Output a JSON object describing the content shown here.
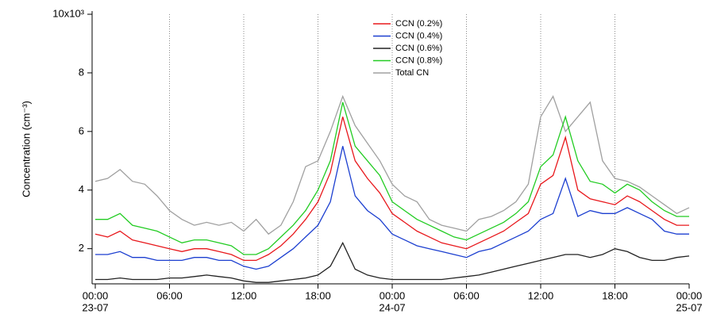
{
  "chart_data": {
    "type": "line",
    "y_label": "Concentration (cm⁻³)",
    "x": [
      0,
      1,
      2,
      3,
      4,
      5,
      6,
      7,
      8,
      9,
      10,
      11,
      12,
      13,
      14,
      15,
      16,
      17,
      18,
      19,
      20,
      21,
      22,
      23,
      24,
      25,
      26,
      27,
      28,
      29,
      30,
      31,
      32,
      33,
      34,
      35,
      36,
      37,
      38,
      39,
      40,
      41,
      42,
      43,
      44,
      45,
      46,
      47,
      48
    ],
    "xlim": [
      0,
      48
    ],
    "xticks": [
      {
        "value": 0,
        "label": "00:00"
      },
      {
        "value": 6,
        "label": "06:00"
      },
      {
        "value": 12,
        "label": "12:00"
      },
      {
        "value": 18,
        "label": "18:00"
      },
      {
        "value": 24,
        "label": "00:00"
      },
      {
        "value": 30,
        "label": "06:00"
      },
      {
        "value": 36,
        "label": "12:00"
      },
      {
        "value": 42,
        "label": "18:00"
      },
      {
        "value": 48,
        "label": "00:00"
      }
    ],
    "xtick_dates": [
      {
        "value": 0,
        "label": "23-07"
      },
      {
        "value": 24,
        "label": "24-07"
      },
      {
        "value": 48,
        "label": "25-07"
      }
    ],
    "ylim": [
      0.8,
      10
    ],
    "yticks": [
      2,
      4,
      6,
      8,
      {
        "value": 10,
        "label": "10x10³"
      }
    ],
    "grid": "x-dotted",
    "legend": "upper center",
    "series": [
      {
        "name": "CCN (0.2%)",
        "color": "#e8181c",
        "values": [
          2.5,
          2.4,
          2.6,
          2.3,
          2.2,
          2.1,
          2.0,
          1.9,
          2.0,
          2.0,
          1.9,
          1.8,
          1.6,
          1.6,
          1.8,
          2.1,
          2.5,
          3.0,
          3.6,
          4.6,
          6.5,
          5.0,
          4.4,
          3.9,
          3.2,
          2.9,
          2.6,
          2.4,
          2.2,
          2.1,
          2.0,
          2.2,
          2.4,
          2.6,
          2.9,
          3.2,
          4.2,
          4.5,
          5.8,
          4.0,
          3.7,
          3.6,
          3.5,
          3.8,
          3.6,
          3.3,
          3.0,
          2.8,
          2.8
        ]
      },
      {
        "name": "CCN (0.4%)",
        "color": "#1c3fd0",
        "values": [
          1.8,
          1.8,
          1.9,
          1.7,
          1.7,
          1.6,
          1.6,
          1.6,
          1.7,
          1.7,
          1.6,
          1.6,
          1.4,
          1.3,
          1.4,
          1.7,
          2.0,
          2.4,
          2.8,
          3.6,
          5.5,
          3.8,
          3.3,
          3.0,
          2.5,
          2.3,
          2.1,
          2.0,
          1.9,
          1.8,
          1.7,
          1.9,
          2.0,
          2.2,
          2.4,
          2.6,
          3.0,
          3.2,
          4.4,
          3.1,
          3.3,
          3.2,
          3.2,
          3.4,
          3.2,
          3.0,
          2.6,
          2.5,
          2.5
        ]
      },
      {
        "name": "CCN (0.6%)",
        "color": "#222222",
        "values": [
          0.95,
          0.95,
          1.0,
          0.95,
          0.95,
          0.95,
          1.0,
          1.0,
          1.05,
          1.1,
          1.05,
          1.0,
          0.9,
          0.85,
          0.85,
          0.9,
          0.95,
          1.0,
          1.1,
          1.4,
          2.2,
          1.3,
          1.1,
          1.0,
          0.95,
          0.95,
          0.95,
          0.95,
          0.95,
          1.0,
          1.05,
          1.1,
          1.2,
          1.3,
          1.4,
          1.5,
          1.6,
          1.7,
          1.8,
          1.8,
          1.7,
          1.8,
          2.0,
          1.9,
          1.7,
          1.6,
          1.6,
          1.7,
          1.75
        ]
      },
      {
        "name": "CCN (0.8%)",
        "color": "#22cc22",
        "values": [
          3.0,
          3.0,
          3.2,
          2.8,
          2.7,
          2.6,
          2.4,
          2.2,
          2.3,
          2.3,
          2.2,
          2.1,
          1.8,
          1.8,
          2.0,
          2.4,
          2.8,
          3.3,
          4.0,
          5.0,
          7.0,
          5.5,
          5.0,
          4.5,
          3.6,
          3.3,
          3.0,
          2.8,
          2.6,
          2.4,
          2.3,
          2.5,
          2.7,
          2.9,
          3.2,
          3.6,
          4.8,
          5.2,
          6.5,
          5.0,
          4.3,
          4.2,
          3.9,
          4.2,
          4.0,
          3.6,
          3.3,
          3.1,
          3.1
        ]
      },
      {
        "name": "Total CN",
        "color": "#a0a0a0",
        "values": [
          4.3,
          4.4,
          4.7,
          4.3,
          4.2,
          3.8,
          3.3,
          3.0,
          2.8,
          2.9,
          2.8,
          2.9,
          2.6,
          3.0,
          2.5,
          2.8,
          3.6,
          4.8,
          5.0,
          6.0,
          7.2,
          6.2,
          5.6,
          5.0,
          4.2,
          3.8,
          3.6,
          3.0,
          2.8,
          2.7,
          2.6,
          3.0,
          3.1,
          3.3,
          3.6,
          4.2,
          6.5,
          7.2,
          6.0,
          6.5,
          7.0,
          5.0,
          4.4,
          4.3,
          4.1,
          3.8,
          3.5,
          3.2,
          3.4
        ]
      }
    ]
  }
}
